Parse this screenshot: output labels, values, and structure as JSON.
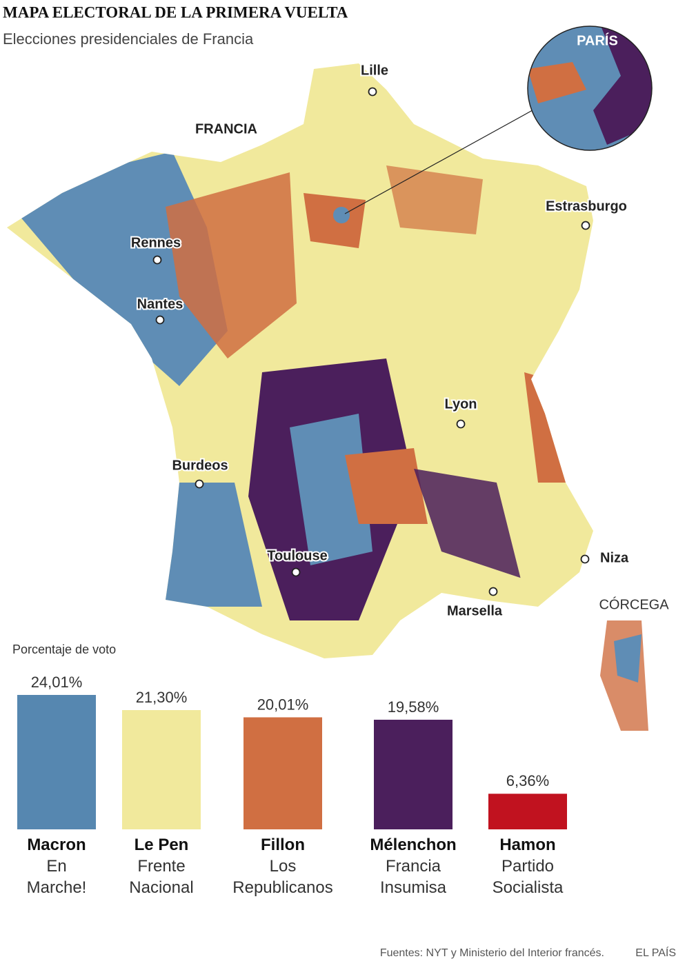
{
  "title": "MAPA ELECTORAL DE LA PRIMERA VUELTA",
  "subtitle": "Elecciones presidenciales de Francia",
  "map": {
    "country_label": "FRANCIA",
    "inset_label": "PARÍS",
    "corsica_label": "CÓRCEGA",
    "cities": [
      "Lille",
      "Estrasburgo",
      "Rennes",
      "Nantes",
      "Lyon",
      "Burdeos",
      "Toulouse",
      "Niza",
      "Marsella"
    ]
  },
  "chart_data": {
    "type": "bar",
    "title": "Porcentaje de voto",
    "categories": [
      "Macron",
      "Le Pen",
      "Fillon",
      "Mélenchon",
      "Hamon"
    ],
    "parties": [
      [
        "En",
        "Marche!"
      ],
      [
        "Frente",
        "Nacional"
      ],
      [
        "Los",
        "Republicanos"
      ],
      [
        "Francia",
        "Insumisa"
      ],
      [
        "Partido",
        "Socialista"
      ]
    ],
    "values": [
      24.01,
      21.3,
      20.01,
      19.58,
      6.36
    ],
    "value_labels": [
      "24,01%",
      "21,30%",
      "20,01%",
      "19,58%",
      "6,36%"
    ],
    "colors": [
      "#5687b0",
      "#f1e99c",
      "#d06f42",
      "#4b1f5c",
      "#c1121f"
    ]
  },
  "source": "Fuentes: NYT y Ministerio del Interior francés.",
  "brand": "EL PAÍS"
}
